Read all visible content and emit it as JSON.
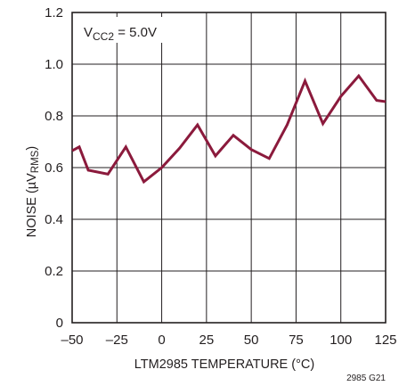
{
  "chart_data": {
    "type": "line",
    "annotation": {
      "main": "V",
      "sub": "CC2",
      "tail": " = 5.0V"
    },
    "xlabel": "LTM2985 TEMPERATURE (°C)",
    "ylabel": {
      "main": "NOISE (µV",
      "sub": "RMS",
      "tail": ")"
    },
    "figure_id": "2985 G21",
    "xlim": [
      -50,
      125
    ],
    "ylim": [
      0,
      1.2
    ],
    "x_ticks": [
      -50,
      -25,
      0,
      25,
      50,
      75,
      100,
      125
    ],
    "x_tick_labels": [
      "–50",
      "–25",
      "0",
      "25",
      "50",
      "75",
      "100",
      "125"
    ],
    "y_ticks": [
      0,
      0.2,
      0.4,
      0.6,
      0.8,
      1.0,
      1.2
    ],
    "y_tick_labels": [
      "0",
      "0.2",
      "0.4",
      "0.6",
      "0.8",
      "1.0",
      "1.2"
    ],
    "grid": true,
    "series": [
      {
        "color": "#8b1a3c",
        "x": [
          -50,
          -46,
          -41,
          -30,
          -20,
          -10,
          0,
          10,
          20,
          30,
          40,
          50,
          60,
          70,
          80,
          90,
          100,
          110,
          120,
          125
        ],
        "y": [
          0.665,
          0.68,
          0.59,
          0.575,
          0.68,
          0.545,
          0.6,
          0.675,
          0.765,
          0.645,
          0.725,
          0.67,
          0.635,
          0.765,
          0.935,
          0.77,
          0.875,
          0.955,
          0.86,
          0.855
        ]
      }
    ]
  }
}
